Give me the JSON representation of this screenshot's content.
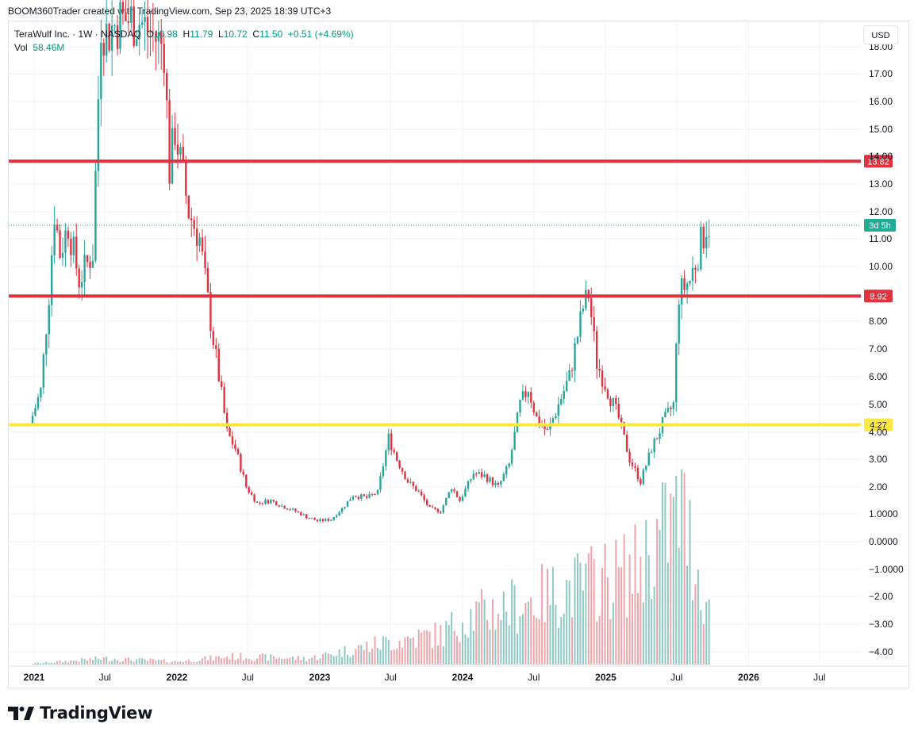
{
  "header": {
    "attribution": "BOOM360Trader created with TradingView.com, Sep 23, 2025 18:39 UTC+3"
  },
  "legend": {
    "symbol": "TeraWulf Inc. · 1W · NASDAQ",
    "o_label": "O",
    "o_value": "10.98",
    "h_label": "H",
    "h_value": "11.79",
    "l_label": "L",
    "l_value": "10.72",
    "c_label": "C",
    "c_value": "11.50",
    "change": "+0.51 (+4.69%)",
    "vol_label": "Vol",
    "vol_value": "58.46M"
  },
  "currency": "USD",
  "footer": {
    "brand": "TradingView"
  },
  "colors": {
    "up": "#26a69a",
    "down": "#e0323f",
    "vol_up": "#8fc9c4",
    "vol_down": "#f1a4a9",
    "level_red": "#e0323f",
    "level_yellow": "#fde843",
    "last_price_badge": "#22ab94"
  },
  "chart_data": {
    "type": "candlestick",
    "xlabels": [
      "2021",
      "Jul",
      "2022",
      "Jul",
      "2023",
      "Jul",
      "2024",
      "Jul",
      "2025",
      "Jul",
      "2026",
      "Jul"
    ],
    "y_ticks": [
      "18.00",
      "17.00",
      "16.00",
      "15.00",
      "14.00",
      "13.00",
      "12.00",
      "11.00",
      "10.00",
      "8.00",
      "7.00",
      "6.00",
      "5.00",
      "4.00",
      "3.00",
      "2.00",
      "1.0000",
      "0.0000",
      "−1.0000",
      "−2.00",
      "−3.00",
      "−4.00"
    ],
    "horizontal_levels": [
      {
        "value": 13.82,
        "label": "13.82",
        "color": "red"
      },
      {
        "value": 8.92,
        "label": "8.92",
        "color": "red"
      },
      {
        "value": 4.27,
        "label": "4.27",
        "color": "yellow"
      }
    ],
    "last_price": 11.5,
    "last_price_label": "3d 5h",
    "price_path": [
      [
        "2020-12-28",
        4.3
      ],
      [
        "2021-01-25",
        5.5
      ],
      [
        "2021-02-15",
        9.0
      ],
      [
        "2021-03-01",
        12.0
      ],
      [
        "2021-03-15",
        10.5
      ],
      [
        "2021-04-05",
        11.5
      ],
      [
        "2021-05-03",
        9.5
      ],
      [
        "2021-06-07",
        10.5
      ],
      [
        "2021-06-28",
        19.0
      ],
      [
        "2021-07-12",
        18.5
      ],
      [
        "2021-08-15",
        19.0
      ],
      [
        "2021-10-01",
        19.0
      ],
      [
        "2021-12-06",
        18.0
      ],
      [
        "2021-12-20",
        13.5
      ],
      [
        "2022-01-03",
        15.0
      ],
      [
        "2022-02-07",
        12.0
      ],
      [
        "2022-03-07",
        11.0
      ],
      [
        "2022-04-04",
        8.0
      ],
      [
        "2022-04-25",
        6.0
      ],
      [
        "2022-05-16",
        4.0
      ],
      [
        "2022-06-06",
        3.4
      ],
      [
        "2022-07-04",
        2.0
      ],
      [
        "2022-08-01",
        1.4
      ],
      [
        "2022-09-05",
        1.5
      ],
      [
        "2022-10-03",
        1.3
      ],
      [
        "2022-11-07",
        1.1
      ],
      [
        "2022-12-05",
        0.9
      ],
      [
        "2023-01-02",
        0.75
      ],
      [
        "2023-02-06",
        0.8
      ],
      [
        "2023-03-06",
        1.2
      ],
      [
        "2023-04-03",
        1.7
      ],
      [
        "2023-05-08",
        1.6
      ],
      [
        "2023-06-05",
        1.8
      ],
      [
        "2023-07-03",
        3.8
      ],
      [
        "2023-07-24",
        3.0
      ],
      [
        "2023-08-21",
        2.2
      ],
      [
        "2023-09-18",
        1.8
      ],
      [
        "2023-10-16",
        1.2
      ],
      [
        "2023-11-13",
        1.1
      ],
      [
        "2023-12-11",
        2.0
      ],
      [
        "2024-01-01",
        1.5
      ],
      [
        "2024-02-05",
        2.5
      ],
      [
        "2024-03-04",
        2.4
      ],
      [
        "2024-04-08",
        2.0
      ],
      [
        "2024-05-06",
        2.8
      ],
      [
        "2024-06-03",
        5.0
      ],
      [
        "2024-06-24",
        5.6
      ],
      [
        "2024-07-15",
        4.5
      ],
      [
        "2024-08-12",
        4.0
      ],
      [
        "2024-09-09",
        5.0
      ],
      [
        "2024-10-07",
        6.0
      ],
      [
        "2024-11-11",
        8.5
      ],
      [
        "2024-11-25",
        9.0
      ],
      [
        "2024-12-16",
        6.5
      ],
      [
        "2025-01-13",
        5.5
      ],
      [
        "2025-02-10",
        4.5
      ],
      [
        "2025-03-10",
        3.0
      ],
      [
        "2025-04-07",
        2.2
      ],
      [
        "2025-05-05",
        3.4
      ],
      [
        "2025-06-02",
        4.3
      ],
      [
        "2025-06-30",
        5.0
      ],
      [
        "2025-07-14",
        9.0
      ],
      [
        "2025-08-11",
        9.5
      ],
      [
        "2025-09-22",
        11.5
      ]
    ],
    "volume_path": [
      [
        "2020-12-28",
        0.2
      ],
      [
        "2021-06-28",
        1.2
      ],
      [
        "2022-01-03",
        0.6
      ],
      [
        "2022-05-16",
        1.6
      ],
      [
        "2022-12-05",
        1.2
      ],
      [
        "2023-07-03",
        4.5
      ],
      [
        "2023-11-13",
        6.0
      ],
      [
        "2024-01-01",
        9.0
      ],
      [
        "2024-06-03",
        12.0
      ],
      [
        "2024-11-25",
        16.0
      ],
      [
        "2025-03-10",
        18.0
      ],
      [
        "2025-07-14",
        30.0
      ],
      [
        "2025-09-22",
        10.0
      ]
    ]
  }
}
